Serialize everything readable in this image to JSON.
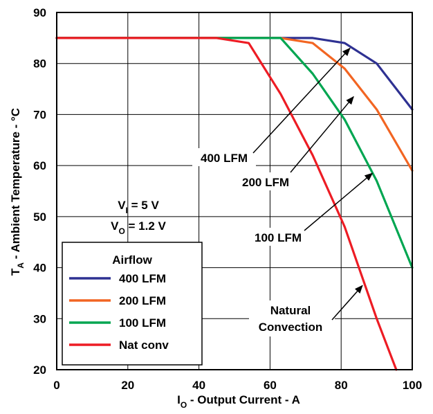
{
  "chart_data": {
    "type": "line",
    "xlabel": {
      "main": "I",
      "sub": "O",
      "rest": " - Output Current - A"
    },
    "ylabel": {
      "main": "T",
      "sub": "A",
      "rest": " - Ambient Temperature - °C"
    },
    "xlim": [
      0,
      100
    ],
    "ylim": [
      20,
      90
    ],
    "xticks": [
      "0",
      "20",
      "40",
      "60",
      "80",
      "100"
    ],
    "yticks": [
      "20",
      "30",
      "40",
      "50",
      "60",
      "70",
      "80",
      "90"
    ],
    "grid": true,
    "legend": {
      "title": "Airflow",
      "placement": "bottom-left",
      "entries": [
        "400 LFM",
        "200 LFM",
        "100 LFM",
        "Nat conv"
      ]
    },
    "series": [
      {
        "name": "400 LFM",
        "color": "#2e3192",
        "x": [
          0,
          45,
          72,
          81,
          90,
          100
        ],
        "y": [
          85,
          85,
          85,
          84,
          80,
          71
        ]
      },
      {
        "name": "200 LFM",
        "color": "#f26522",
        "x": [
          0,
          45,
          63,
          72,
          81,
          90,
          100
        ],
        "y": [
          85,
          85,
          85,
          84,
          79,
          71,
          59
        ]
      },
      {
        "name": "100 LFM",
        "color": "#00a651",
        "x": [
          0,
          45,
          63,
          72,
          81,
          90,
          100
        ],
        "y": [
          85,
          85,
          85,
          78,
          69,
          57,
          40
        ]
      },
      {
        "name": "Nat conv",
        "color": "#ed1c24",
        "x": [
          0,
          45,
          54,
          63,
          72,
          81,
          90,
          95.5
        ],
        "y": [
          85,
          85,
          84,
          74,
          62,
          48,
          30,
          20
        ]
      }
    ],
    "conditions": {
      "vi": {
        "main": "V",
        "sub": "I",
        "rest": " = 5 V"
      },
      "vo": {
        "main": "V",
        "sub": "O",
        "rest": " = 1.2 V"
      }
    },
    "annotations": [
      {
        "lines": [
          "400 LFM"
        ],
        "arrow_to": [
          82.5,
          83
        ]
      },
      {
        "lines": [
          "200 LFM"
        ],
        "arrow_to": [
          83.5,
          73.5
        ]
      },
      {
        "lines": [
          "100 LFM"
        ],
        "arrow_to": [
          88.8,
          58.5
        ]
      },
      {
        "lines": [
          "Natural",
          "Convection"
        ],
        "arrow_to": [
          86,
          36.5
        ]
      }
    ]
  }
}
